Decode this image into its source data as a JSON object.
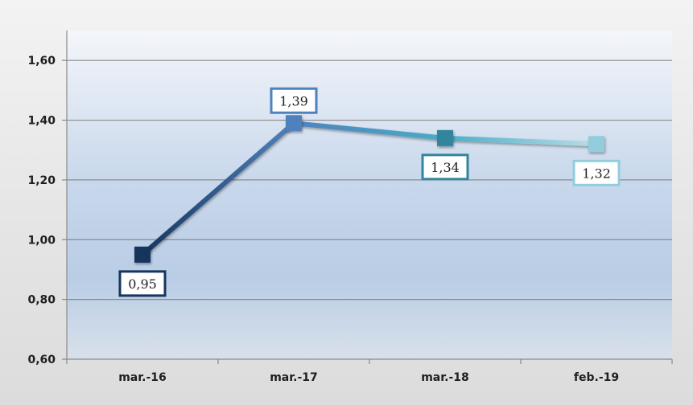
{
  "chart_data": {
    "type": "line",
    "categories": [
      "mar.-16",
      "mar.-17",
      "mar.-18",
      "feb.-19"
    ],
    "values": [
      0.95,
      1.39,
      1.34,
      1.32
    ],
    "data_labels": [
      "0,95",
      "1,39",
      "1,34",
      "1,32"
    ],
    "yticks": [
      "0,60",
      "0,80",
      "1,00",
      "1,20",
      "1,40",
      "1,60"
    ],
    "ylim": [
      0.6,
      1.7
    ],
    "grid": true,
    "legend": "none",
    "point_colors": [
      "#17365d",
      "#4f81bd",
      "#31859c",
      "#92cddc"
    ],
    "label_border_colors": [
      "#17365d",
      "#4f81bd",
      "#31859c",
      "#92cddc"
    ],
    "line_gradient": [
      "#17365d",
      "#4f81bd",
      "#4bacc6",
      "#b7dde8"
    ],
    "plot_gradient": [
      "#f4f6fa",
      "#b9cde5"
    ]
  }
}
